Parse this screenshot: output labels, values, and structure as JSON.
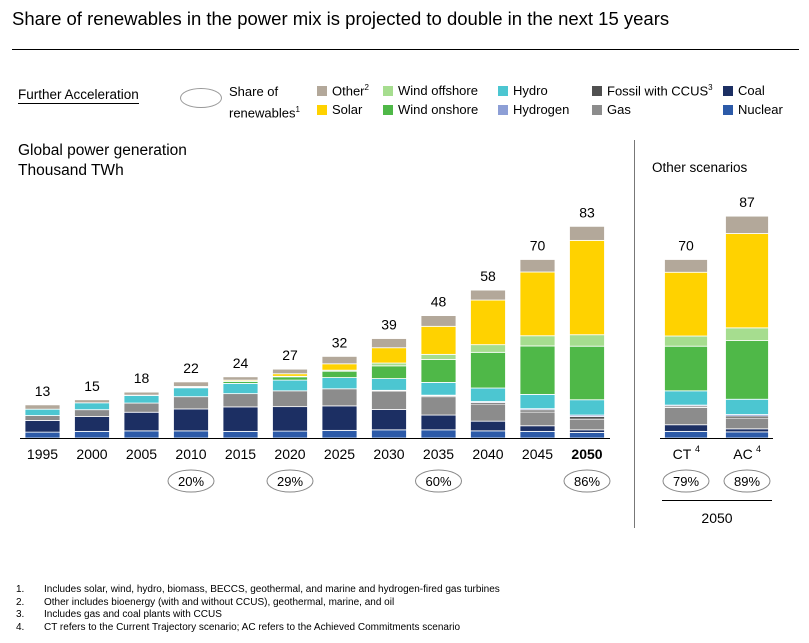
{
  "title": "Share of renewables in the power mix is projected to double in the next 15 years",
  "scenario_label": "Further Acceleration",
  "legend": {
    "share_label_line1": "Share of",
    "share_label_line2": "renewables",
    "share_sup": "1",
    "items": [
      {
        "label": "Other",
        "sup": "2",
        "color": "#b3a89a"
      },
      {
        "label": "Solar",
        "sup": "",
        "color": "#ffd200"
      },
      {
        "label": "Wind offshore",
        "sup": "",
        "color": "#a6dd8f"
      },
      {
        "label": "Wind onshore",
        "sup": "",
        "color": "#4fb848"
      },
      {
        "label": "Hydro",
        "sup": "",
        "color": "#4cc6d1"
      },
      {
        "label": "Hydrogen",
        "sup": "",
        "color": "#8d9fd6"
      },
      {
        "label": "Fossil with CCUS",
        "sup": "3",
        "color": "#505050"
      },
      {
        "label": "Gas",
        "sup": "",
        "color": "#8c8c8c"
      },
      {
        "label": "Coal",
        "sup": "",
        "color": "#1c2f63"
      },
      {
        "label": "Nuclear",
        "sup": "",
        "color": "#2c5aa8"
      }
    ]
  },
  "chart_data": {
    "type": "bar",
    "stacked": true,
    "title": "Global power generation",
    "subtitle": "Thousand TWh",
    "other_scenarios_title": "Other scenarios",
    "categories": [
      "1995",
      "2000",
      "2005",
      "2010",
      "2015",
      "2020",
      "2025",
      "2030",
      "2035",
      "2040",
      "2045",
      "2050"
    ],
    "totals": [
      13,
      15,
      18,
      22,
      24,
      27,
      32,
      39,
      48,
      58,
      70,
      83
    ],
    "bold_category": "2050",
    "share_labels": [
      {
        "category": "2010",
        "label": "20%"
      },
      {
        "category": "2020",
        "label": "29%"
      },
      {
        "category": "2035",
        "label": "60%"
      },
      {
        "category": "2050",
        "label": "86%"
      }
    ],
    "series": [
      {
        "name": "Nuclear",
        "values": [
          2.3,
          2.6,
          2.8,
          2.8,
          2.6,
          2.7,
          3.0,
          3.2,
          3.2,
          2.8,
          2.6,
          2.2
        ]
      },
      {
        "name": "Coal",
        "values": [
          4.6,
          5.8,
          7.3,
          8.6,
          9.6,
          9.6,
          9.6,
          8.0,
          5.8,
          3.8,
          2.2,
          1.0
        ]
      },
      {
        "name": "Gas",
        "values": [
          1.9,
          2.7,
          3.6,
          4.8,
          5.2,
          6.2,
          6.7,
          7.2,
          7.2,
          6.7,
          5.4,
          4.2
        ]
      },
      {
        "name": "Fossil with CCUS",
        "values": [
          0,
          0,
          0,
          0,
          0,
          0,
          0,
          0.2,
          0.4,
          0.6,
          0.8,
          1.0
        ]
      },
      {
        "name": "Hydrogen",
        "values": [
          0,
          0,
          0,
          0,
          0,
          0,
          0,
          0.1,
          0.2,
          0.4,
          0.5,
          0.6
        ]
      },
      {
        "name": "Hydro",
        "values": [
          2.5,
          2.7,
          3.0,
          3.5,
          4.0,
          4.2,
          4.4,
          4.6,
          5.0,
          5.3,
          5.6,
          6.0
        ]
      },
      {
        "name": "Wind onshore",
        "values": [
          0,
          0,
          0.1,
          0.3,
          0.8,
          1.3,
          2.5,
          5.0,
          9.0,
          14.0,
          19.0,
          21.0
        ]
      },
      {
        "name": "Wind offshore",
        "values": [
          0,
          0,
          0,
          0,
          0.1,
          0.2,
          0.4,
          1.1,
          2.0,
          3.0,
          4.0,
          4.5
        ]
      },
      {
        "name": "Solar",
        "values": [
          0,
          0,
          0,
          0.2,
          0.4,
          1.0,
          2.5,
          6.0,
          11.0,
          17.5,
          25.0,
          37.0
        ]
      },
      {
        "name": "Other",
        "values": [
          1.7,
          1.2,
          1.2,
          1.8,
          1.3,
          1.8,
          2.9,
          3.6,
          4.2,
          3.9,
          4.9,
          5.5
        ]
      }
    ],
    "other_scenarios": {
      "group_label": "2050",
      "categories": [
        "CT",
        "AC"
      ],
      "category_sups": [
        "4",
        "4"
      ],
      "totals": [
        70,
        87
      ],
      "share_labels": [
        "79%",
        "89%"
      ],
      "series": [
        {
          "name": "Nuclear",
          "values": [
            2.6,
            2.4
          ]
        },
        {
          "name": "Coal",
          "values": [
            2.6,
            1.2
          ]
        },
        {
          "name": "Gas",
          "values": [
            6.8,
            4.2
          ]
        },
        {
          "name": "Fossil with CCUS",
          "values": [
            0.5,
            0.8
          ]
        },
        {
          "name": "Hydrogen",
          "values": [
            0.4,
            0.6
          ]
        },
        {
          "name": "Hydro",
          "values": [
            5.6,
            6.0
          ]
        },
        {
          "name": "Wind onshore",
          "values": [
            17.5,
            23.0
          ]
        },
        {
          "name": "Wind offshore",
          "values": [
            4.0,
            5.0
          ]
        },
        {
          "name": "Solar",
          "values": [
            25.0,
            37.0
          ]
        },
        {
          "name": "Other",
          "values": [
            5.0,
            6.8
          ]
        }
      ]
    }
  },
  "footnotes": [
    {
      "num": "1.",
      "text": "Includes solar, wind, hydro, biomass, BECCS, geothermal, and marine and hydrogen-fired gas turbines"
    },
    {
      "num": "2.",
      "text": "Other includes bioenergy (with and without CCUS), geothermal, marine, and oil"
    },
    {
      "num": "3.",
      "text": "Includes gas and coal plants with CCUS"
    },
    {
      "num": "4.",
      "text": "CT refers to the Current Trajectory scenario; AC refers to the Achieved Commitments scenario"
    }
  ]
}
